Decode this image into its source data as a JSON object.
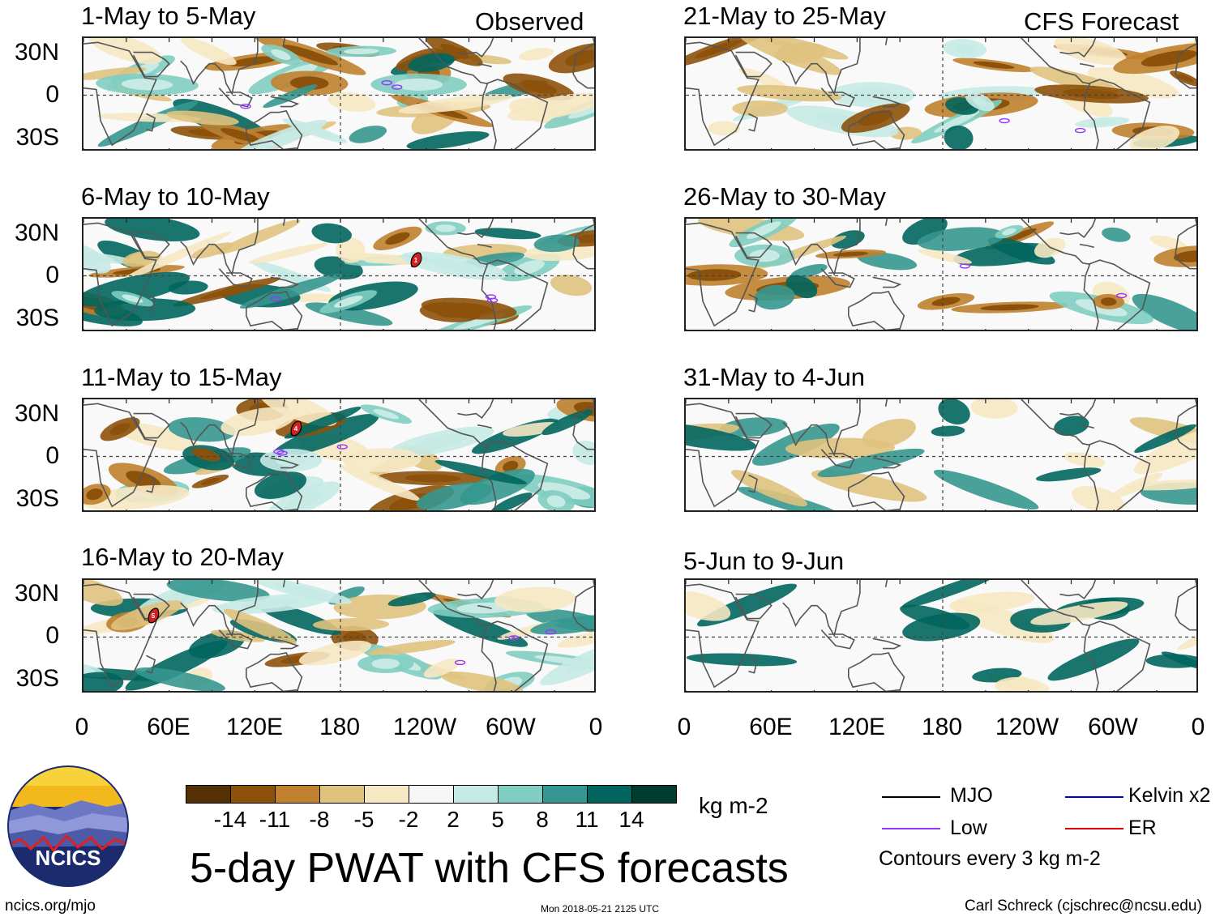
{
  "panels": {
    "left": [
      {
        "period": "1-May to 5-May",
        "label": "Observed"
      },
      {
        "period": "6-May to 10-May"
      },
      {
        "period": "11-May to 15-May"
      },
      {
        "period": "16-May to 20-May"
      }
    ],
    "right": [
      {
        "period": "21-May to 25-May",
        "label": "CFS Forecast"
      },
      {
        "period": "26-May to 30-May"
      },
      {
        "period": "31-May to 4-Jun"
      },
      {
        "period": "5-Jun to 9-Jun"
      }
    ]
  },
  "axes": {
    "lat_ticks": [
      "30N",
      "0",
      "30S"
    ],
    "lon_ticks": [
      "0",
      "60E",
      "120E",
      "180",
      "120W",
      "60W",
      "0"
    ]
  },
  "storm_markers": [
    {
      "panel": "6-May to 10-May",
      "number": "1"
    },
    {
      "panel": "11-May to 15-May",
      "number": "4"
    },
    {
      "panel": "16-May to 20-May",
      "number": "5"
    }
  ],
  "colorbar": {
    "labels": [
      "-14",
      "-11",
      "-8",
      "-5",
      "-2",
      "2",
      "5",
      "8",
      "11",
      "14"
    ],
    "colors": [
      "#543005",
      "#8c510a",
      "#bf812d",
      "#dfc27d",
      "#f6e8c3",
      "#f7f7f7",
      "#c7eae5",
      "#80cdc1",
      "#35978f",
      "#01665e",
      "#003c30"
    ],
    "units": "kg m-2"
  },
  "title": "5-day PWAT with CFS forecasts",
  "legend": {
    "items": [
      {
        "label": "MJO",
        "color": "#000000"
      },
      {
        "label": "Kelvin x2",
        "color": "#0000cc"
      },
      {
        "label": "Low",
        "color": "#9933ff"
      },
      {
        "label": "ER",
        "color": "#dd0000"
      }
    ],
    "note": "Contours every 3 kg m-2"
  },
  "logo": {
    "text": "NCICS"
  },
  "footer": {
    "left": "ncics.org/mjo",
    "center": "Mon 2018-05-21 2125 UTC",
    "right": "Carl Schreck (cjschrec@ncsu.edu)"
  }
}
